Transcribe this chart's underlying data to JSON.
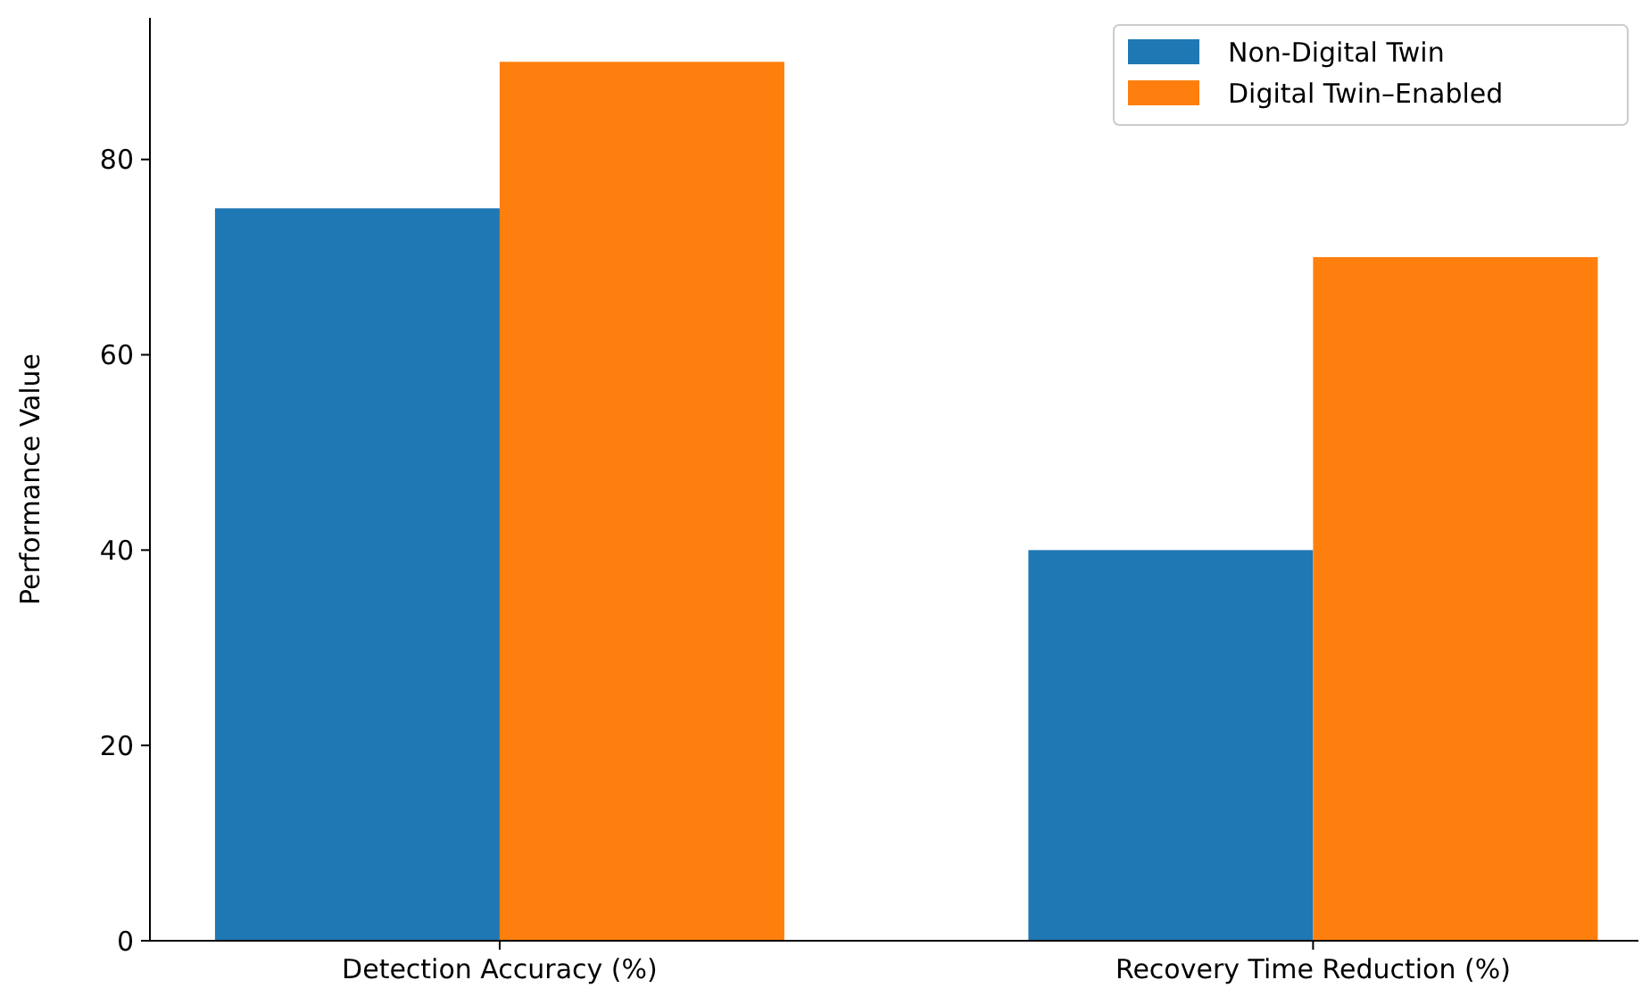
{
  "chart_data": {
    "type": "bar",
    "ylabel": "Performance Value",
    "categories": [
      "Detection Accuracy (%)",
      "Recovery Time Reduction (%)"
    ],
    "series": [
      {
        "name": "Non-Digital Twin",
        "color": "#1f77b4",
        "values": [
          75,
          40
        ]
      },
      {
        "name": "Digital Twin–Enabled",
        "color": "#ff7f0e",
        "values": [
          90,
          70
        ]
      }
    ],
    "ylim": [
      0,
      94.5
    ],
    "yticks": [
      0,
      20,
      40,
      60,
      80
    ],
    "legend": "top right",
    "grid": false
  }
}
